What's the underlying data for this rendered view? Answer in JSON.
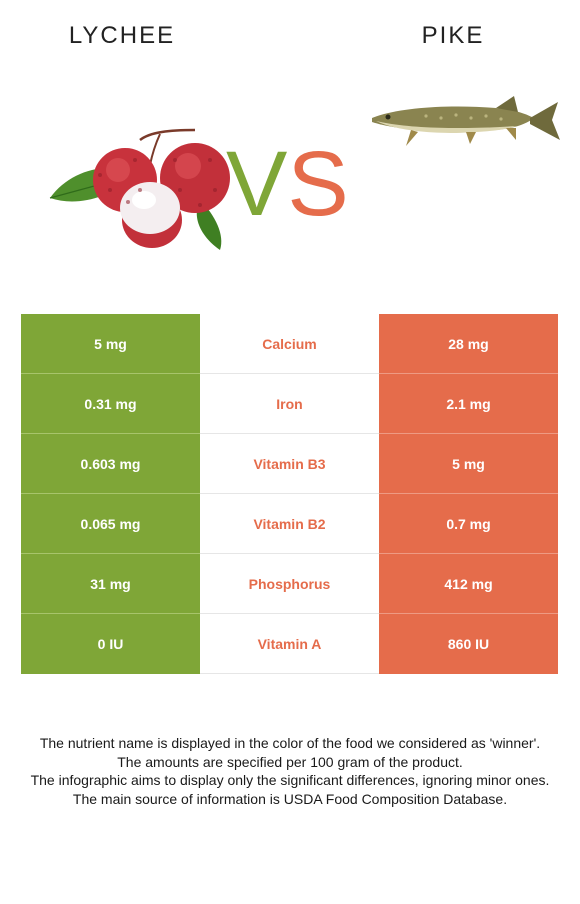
{
  "header": {
    "left_title": "LYCHEE",
    "right_title": "PIKE",
    "vs_v": "V",
    "vs_s": "S"
  },
  "colors": {
    "lychee": "#7fa637",
    "pike": "#e56c4b"
  },
  "rows": [
    {
      "left": "5 mg",
      "nutrient": "Calcium",
      "right": "28 mg"
    },
    {
      "left": "0.31 mg",
      "nutrient": "Iron",
      "right": "2.1 mg"
    },
    {
      "left": "0.603 mg",
      "nutrient": "Vitamin B3",
      "right": "5 mg"
    },
    {
      "left": "0.065 mg",
      "nutrient": "Vitamin B2",
      "right": "0.7 mg"
    },
    {
      "left": "31 mg",
      "nutrient": "Phosphorus",
      "right": "412 mg"
    },
    {
      "left": "0 IU",
      "nutrient": "Vitamin A",
      "right": "860 IU"
    }
  ],
  "notes": [
    "The nutrient name is displayed in the color of the food we considered as 'winner'.",
    "The amounts are specified per 100 gram of the product.",
    "The infographic aims to display only the significant differences, ignoring minor ones.",
    "The main source of information is USDA Food Composition Database."
  ]
}
